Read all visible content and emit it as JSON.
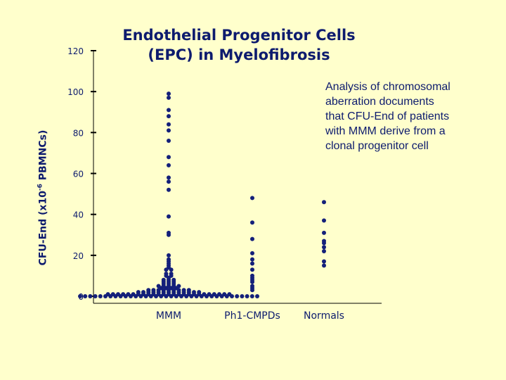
{
  "chart_data": {
    "type": "scatter",
    "title": [
      "Endothelial Progenitor Cells",
      "(EPC) in Myelofibrosis"
    ],
    "ylabel": {
      "prefix": "CFU-End (x10",
      "sup": "-6",
      "suffix": " PBMNCs)"
    },
    "xlabel": "",
    "ylim": [
      0,
      120
    ],
    "yticks": [
      0,
      20,
      40,
      60,
      80,
      100,
      120
    ],
    "categories": [
      "MMM",
      "Ph1-CMPDs",
      "Normals"
    ],
    "series": [
      {
        "category": "MMM",
        "values": [
          0,
          0,
          0,
          0,
          0,
          0,
          0,
          0,
          0,
          0,
          0,
          0,
          0,
          0,
          0,
          0,
          0,
          0,
          0,
          0,
          0,
          0,
          0,
          0,
          0,
          0,
          0,
          0,
          0,
          0,
          0,
          0,
          0,
          0,
          0,
          0,
          1,
          1,
          1,
          1,
          1,
          1,
          1,
          1,
          1,
          1,
          1,
          1,
          1,
          1,
          1,
          1,
          1,
          1,
          1,
          1,
          1,
          1,
          1,
          1,
          1,
          2,
          2,
          2,
          2,
          2,
          2,
          2,
          2,
          2,
          2,
          2,
          2,
          2,
          3,
          3,
          3,
          3,
          3,
          3,
          3,
          3,
          3,
          4,
          4,
          4,
          4,
          5,
          5,
          5,
          5,
          5,
          6,
          6,
          6,
          7,
          7,
          7,
          8,
          8,
          8,
          9,
          10,
          10,
          11,
          11,
          13,
          13,
          14,
          15,
          16,
          17,
          18,
          20,
          30,
          31,
          39,
          52,
          56,
          58,
          64,
          68,
          76,
          81,
          84,
          88,
          91,
          97,
          99
        ]
      },
      {
        "category": "Ph1-CMPDs",
        "values": [
          3,
          4,
          5,
          7,
          8,
          9,
          10,
          13,
          16,
          18,
          21,
          28,
          36,
          48
        ]
      },
      {
        "category": "Normals",
        "values": [
          15,
          17,
          22,
          24,
          26,
          27,
          31,
          37,
          46
        ]
      }
    ],
    "marker_color": "#14207a",
    "grid": false,
    "legend": "none"
  },
  "annotation": [
    "Analysis of chromosomal",
    "aberration documents",
    "that CFU-End of patients",
    "with MMM derive from a",
    "clonal progenitor cell"
  ],
  "colors": {
    "background": "#ffffcc",
    "ink": "#0d1b6e",
    "axis": "#000000"
  }
}
